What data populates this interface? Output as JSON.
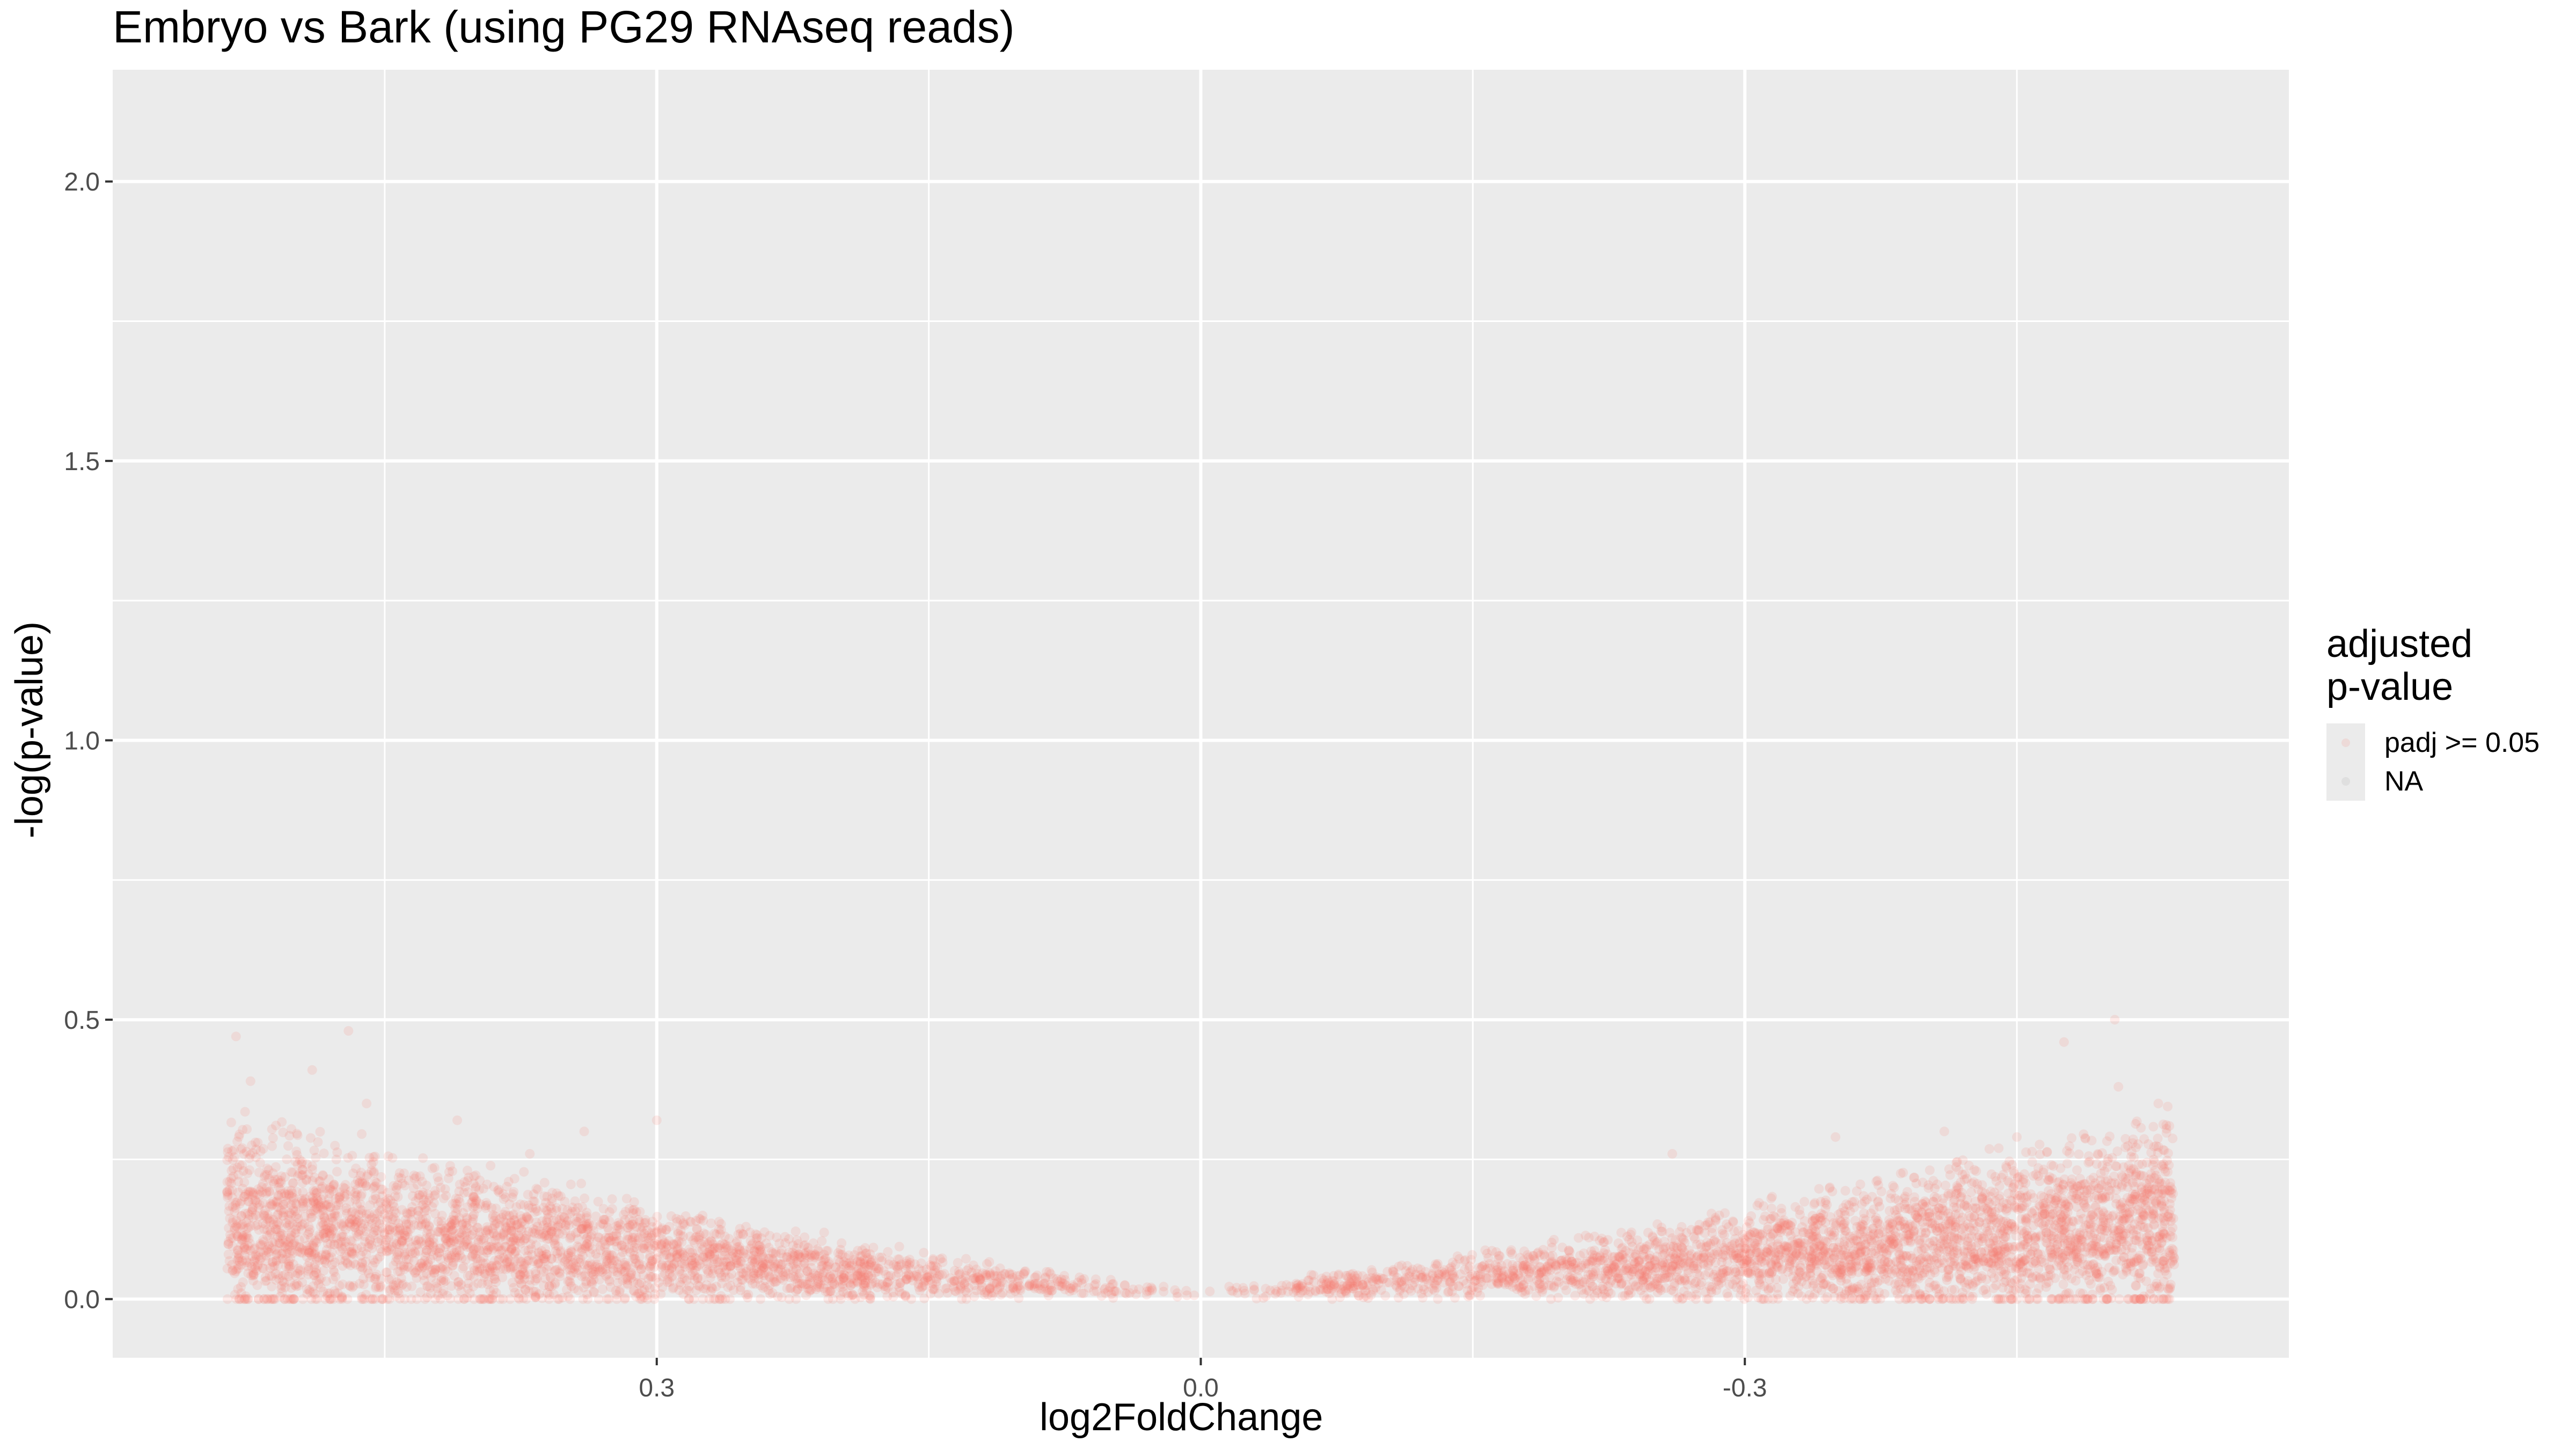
{
  "chart_data": {
    "type": "scatter",
    "title": "Embryo vs Bark (using PG29 RNAseq reads)",
    "xlabel": "log2FoldChange",
    "ylabel": "-log(p-value)",
    "x_reversed": true,
    "xlim": [
      0.6,
      -0.6
    ],
    "ylim": [
      -0.105,
      2.2
    ],
    "x_ticks": [
      0.3,
      0.0,
      -0.3
    ],
    "x_tick_labels": [
      "0.3",
      "0.0",
      "-0.3"
    ],
    "y_ticks": [
      0.0,
      0.5,
      1.0,
      1.5,
      2.0
    ],
    "y_tick_labels": [
      "0.0",
      "0.5",
      "1.0",
      "1.5",
      "2.0"
    ],
    "grid": true,
    "legend": {
      "title": "adjusted\np-value",
      "placement": "right",
      "entries": [
        {
          "label": "padj >= 0.05",
          "color": "#F8766D"
        },
        {
          "label": "NA",
          "color": "#999999"
        }
      ]
    },
    "series": [
      {
        "name": "padj >= 0.05",
        "color": "#F8766D",
        "alpha": 0.15,
        "points": [
          [
            0.532,
            0.47
          ],
          [
            0.47,
            0.48
          ],
          [
            0.524,
            0.39
          ],
          [
            0.41,
            0.32
          ],
          [
            0.3,
            0.32
          ],
          [
            -0.504,
            0.5
          ],
          [
            -0.476,
            0.46
          ],
          [
            -0.506,
            0.38
          ],
          [
            -0.45,
            0.29
          ],
          [
            -0.44,
            0.27
          ],
          [
            -0.528,
            0.35
          ],
          [
            -0.26,
            0.26
          ],
          [
            -0.35,
            0.29
          ],
          [
            -0.41,
            0.3
          ],
          [
            0.34,
            0.3
          ],
          [
            0.37,
            0.26
          ],
          [
            0.46,
            0.35
          ],
          [
            0.52,
            0.28
          ],
          [
            -0.52,
            0.22
          ],
          [
            0.49,
            0.41
          ]
        ],
        "envelope_note": "V-shaped band: about 8000 points between x = 0.537 and x = -0.537; y ranges from 0 at x = 0 up to about 0.5 near the x extremes"
      }
    ]
  }
}
